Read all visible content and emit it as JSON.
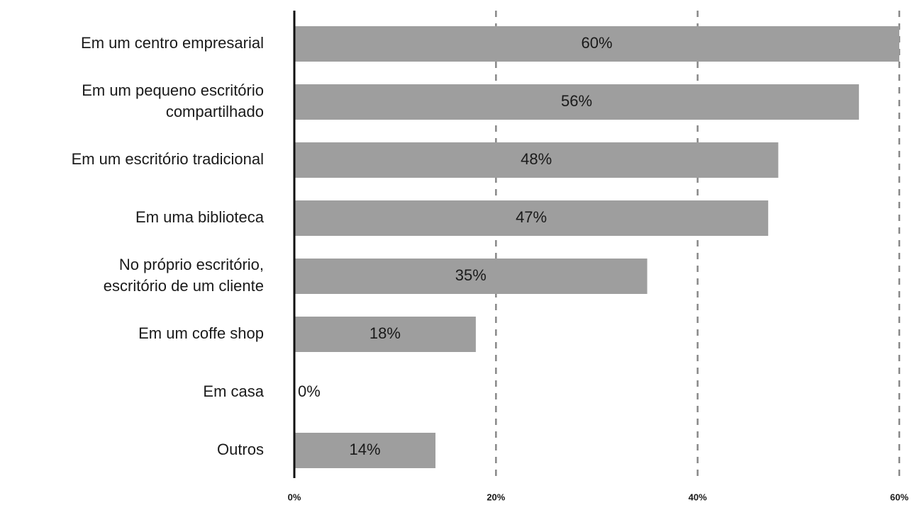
{
  "chart_data": {
    "type": "barh",
    "categories": [
      "Em um centro empresarial",
      "Em um pequeno escritório\ncompartilhado",
      "Em um escritório tradicional",
      "Em uma biblioteca",
      "No próprio escritório,\nescritório de um cliente",
      "Em um coffe shop",
      "Em casa",
      "Outros"
    ],
    "values": [
      60,
      56,
      48,
      47,
      35,
      18,
      0,
      14
    ],
    "value_labels": [
      "60%",
      "56%",
      "48%",
      "47%",
      "35%",
      "18%",
      "0%",
      "14%"
    ],
    "color": "#9e9e9e",
    "xlim": [
      0,
      60
    ],
    "xticks": [
      {
        "value": 0,
        "label": "0%"
      },
      {
        "value": 20,
        "label": "20%"
      },
      {
        "value": 40,
        "label": "40%"
      },
      {
        "value": 60,
        "label": "60%"
      }
    ],
    "grid": true
  }
}
